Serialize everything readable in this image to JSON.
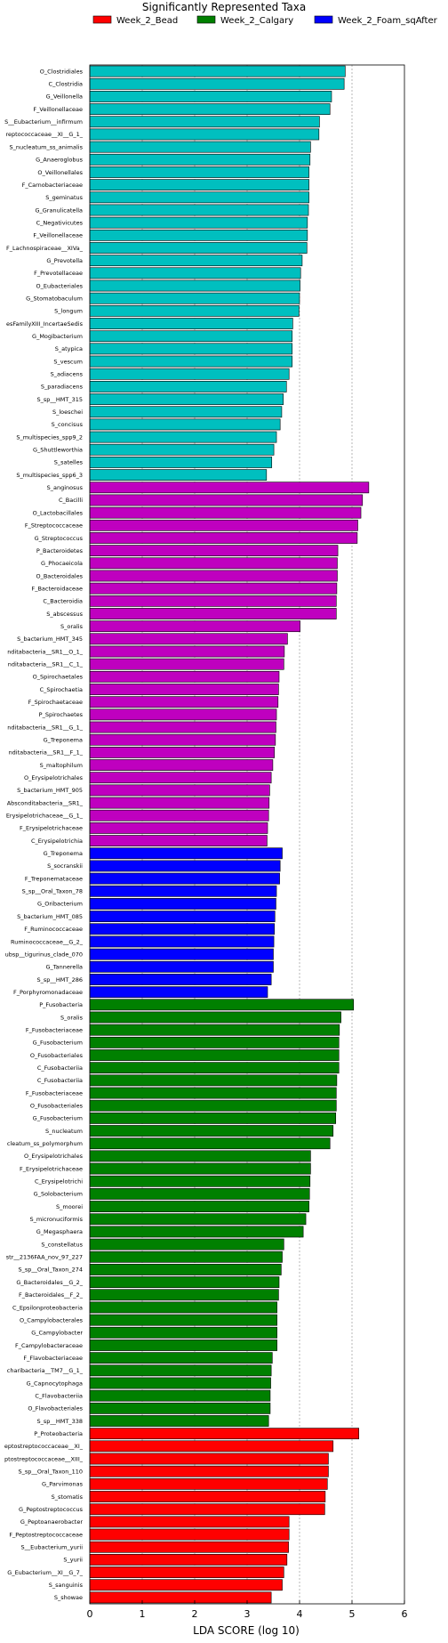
{
  "chart_data": {
    "type": "bar",
    "orientation": "horizontal",
    "title": "Significantly Represented Taxa",
    "xlabel": "LDA SCORE (log 10)",
    "xlim": [
      0,
      6
    ],
    "xticks": [
      0,
      1,
      2,
      3,
      4,
      5,
      6
    ],
    "grid": "vertical-dashed",
    "legend_position": "top",
    "legend": [
      {
        "name": "Week_2_Bead",
        "color": "#ff0000"
      },
      {
        "name": "Week_2_Calgary",
        "color": "#008000"
      },
      {
        "name": "Week_2_Foam_sqAfter",
        "color": "#0000ff"
      }
    ],
    "series_colors": {
      "Week_2_Bead": "#ff0000",
      "Week_2_Calgary": "#008000",
      "Week_2_Foam_sqAfter": "#0000ff",
      "cyan_group": "#00bfbf",
      "magenta_group": "#bf00bf"
    },
    "bars": [
      {
        "label": "O_Clostridiales",
        "value": 4.87,
        "group": "cyan_group"
      },
      {
        "label": "C_Clostridia",
        "value": 4.85,
        "group": "cyan_group"
      },
      {
        "label": "G_Veillonella",
        "value": 4.61,
        "group": "cyan_group"
      },
      {
        "label": "F_Veillonellaceae",
        "value": 4.58,
        "group": "cyan_group"
      },
      {
        "label": "S__Eubacterium__infirmum",
        "value": 4.38,
        "group": "cyan_group"
      },
      {
        "label": "reptococcaceae__XI__G_1_",
        "value": 4.37,
        "group": "cyan_group"
      },
      {
        "label": "S_nucleatum_ss_animalis",
        "value": 4.21,
        "group": "cyan_group"
      },
      {
        "label": "G_Anaeroglobus",
        "value": 4.2,
        "group": "cyan_group"
      },
      {
        "label": "O_Veillonellales",
        "value": 4.18,
        "group": "cyan_group"
      },
      {
        "label": "F_Carnobacteriaceae",
        "value": 4.18,
        "group": "cyan_group"
      },
      {
        "label": "S_geminatus",
        "value": 4.18,
        "group": "cyan_group"
      },
      {
        "label": "G_Granulicatella",
        "value": 4.17,
        "group": "cyan_group"
      },
      {
        "label": "C_Negativicutes",
        "value": 4.15,
        "group": "cyan_group"
      },
      {
        "label": "F_Veillonellaceae",
        "value": 4.15,
        "group": "cyan_group"
      },
      {
        "label": "F_Lachnospiraceae__XIVa_",
        "value": 4.14,
        "group": "cyan_group"
      },
      {
        "label": "G_Prevotella",
        "value": 4.05,
        "group": "cyan_group"
      },
      {
        "label": "F_Prevotellaceae",
        "value": 4.02,
        "group": "cyan_group"
      },
      {
        "label": "O_Eubacteriales",
        "value": 4.01,
        "group": "cyan_group"
      },
      {
        "label": "G_Stomatobaculum",
        "value": 4.0,
        "group": "cyan_group"
      },
      {
        "label": "S_longum",
        "value": 3.99,
        "group": "cyan_group"
      },
      {
        "label": "esFamilyXIII_IncertaeSedis",
        "value": 3.87,
        "group": "cyan_group"
      },
      {
        "label": "G_Mogibacterium",
        "value": 3.86,
        "group": "cyan_group"
      },
      {
        "label": "S_atypica",
        "value": 3.86,
        "group": "cyan_group"
      },
      {
        "label": "S_vescum",
        "value": 3.86,
        "group": "cyan_group"
      },
      {
        "label": "S_adiacens",
        "value": 3.8,
        "group": "cyan_group"
      },
      {
        "label": "S_paradiacens",
        "value": 3.75,
        "group": "cyan_group"
      },
      {
        "label": "S_sp__HMT_315",
        "value": 3.69,
        "group": "cyan_group"
      },
      {
        "label": "S_loeschei",
        "value": 3.66,
        "group": "cyan_group"
      },
      {
        "label": "S_concisus",
        "value": 3.63,
        "group": "cyan_group"
      },
      {
        "label": "S_multispecies_spp9_2",
        "value": 3.56,
        "group": "cyan_group"
      },
      {
        "label": "G_Shuttleworthia",
        "value": 3.51,
        "group": "cyan_group"
      },
      {
        "label": "S_satelles",
        "value": 3.47,
        "group": "cyan_group"
      },
      {
        "label": "S_multispecies_spp6_3",
        "value": 3.37,
        "group": "cyan_group"
      },
      {
        "label": "S_anginosus",
        "value": 5.32,
        "group": "magenta_group"
      },
      {
        "label": "C_Bacilli",
        "value": 5.2,
        "group": "magenta_group"
      },
      {
        "label": "O_Lactobacillales",
        "value": 5.17,
        "group": "magenta_group"
      },
      {
        "label": "F_Streptococcaceae",
        "value": 5.11,
        "group": "magenta_group"
      },
      {
        "label": "G_Streptococcus",
        "value": 5.1,
        "group": "magenta_group"
      },
      {
        "label": "P_Bacteroidetes",
        "value": 4.73,
        "group": "magenta_group"
      },
      {
        "label": "G_Phocaeicola",
        "value": 4.72,
        "group": "magenta_group"
      },
      {
        "label": "O_Bacteroidales",
        "value": 4.72,
        "group": "magenta_group"
      },
      {
        "label": "F_Bacteroidaceae",
        "value": 4.71,
        "group": "magenta_group"
      },
      {
        "label": "C_Bacteroidia",
        "value": 4.7,
        "group": "magenta_group"
      },
      {
        "label": "S_abscessus",
        "value": 4.7,
        "group": "magenta_group"
      },
      {
        "label": "S_oralis",
        "value": 4.01,
        "group": "magenta_group"
      },
      {
        "label": "S_bacterium_HMT_345",
        "value": 3.77,
        "group": "magenta_group"
      },
      {
        "label": "nditabacteria__SR1__O_1_",
        "value": 3.71,
        "group": "magenta_group"
      },
      {
        "label": "nditabacteria__SR1__C_1_",
        "value": 3.7,
        "group": "magenta_group"
      },
      {
        "label": "O_Spirochaetales",
        "value": 3.61,
        "group": "magenta_group"
      },
      {
        "label": "C_Spirochaetia",
        "value": 3.6,
        "group": "magenta_group"
      },
      {
        "label": "F_Spirochaetaceae",
        "value": 3.59,
        "group": "magenta_group"
      },
      {
        "label": "P_Spirochaetes",
        "value": 3.56,
        "group": "magenta_group"
      },
      {
        "label": "nditabacteria__SR1__G_1_",
        "value": 3.55,
        "group": "magenta_group"
      },
      {
        "label": "G_Treponema",
        "value": 3.54,
        "group": "magenta_group"
      },
      {
        "label": "nditabacteria__SR1__F_1_",
        "value": 3.52,
        "group": "magenta_group"
      },
      {
        "label": "S_maltophilum",
        "value": 3.49,
        "group": "magenta_group"
      },
      {
        "label": "O_Erysipelotrichales",
        "value": 3.46,
        "group": "magenta_group"
      },
      {
        "label": "S_bacterium_HMT_905",
        "value": 3.43,
        "group": "magenta_group"
      },
      {
        "label": "Absconditabacteria__SR1_",
        "value": 3.42,
        "group": "magenta_group"
      },
      {
        "label": "Erysipelotrichaceae__G_1_",
        "value": 3.41,
        "group": "magenta_group"
      },
      {
        "label": "F_Erysipelotrichaceae",
        "value": 3.39,
        "group": "magenta_group"
      },
      {
        "label": "C_Erysipelotrichia",
        "value": 3.38,
        "group": "magenta_group"
      },
      {
        "label": "G_Treponema",
        "value": 3.67,
        "group": "Week_2_Foam_sqAfter"
      },
      {
        "label": "S_socranskii",
        "value": 3.63,
        "group": "Week_2_Foam_sqAfter"
      },
      {
        "label": "F_Treponemataceae",
        "value": 3.62,
        "group": "Week_2_Foam_sqAfter"
      },
      {
        "label": "S_sp__Oral_Taxon_78",
        "value": 3.56,
        "group": "Week_2_Foam_sqAfter"
      },
      {
        "label": "G_Oribacterium",
        "value": 3.55,
        "group": "Week_2_Foam_sqAfter"
      },
      {
        "label": "S_bacterium_HMT_085",
        "value": 3.53,
        "group": "Week_2_Foam_sqAfter"
      },
      {
        "label": "F_Ruminococcaceae",
        "value": 3.52,
        "group": "Week_2_Foam_sqAfter"
      },
      {
        "label": "Ruminococcaceae__G_2_",
        "value": 3.51,
        "group": "Week_2_Foam_sqAfter"
      },
      {
        "label": "ubsp__tigurinus_clade_070",
        "value": 3.5,
        "group": "Week_2_Foam_sqAfter"
      },
      {
        "label": "G_Tannerella",
        "value": 3.5,
        "group": "Week_2_Foam_sqAfter"
      },
      {
        "label": "S_sp__HMT_286",
        "value": 3.46,
        "group": "Week_2_Foam_sqAfter"
      },
      {
        "label": "F_Porphyromonadaceae",
        "value": 3.39,
        "group": "Week_2_Foam_sqAfter"
      },
      {
        "label": "P_Fusobacteria",
        "value": 5.03,
        "group": "Week_2_Calgary"
      },
      {
        "label": "S_oralis",
        "value": 4.79,
        "group": "Week_2_Calgary"
      },
      {
        "label": "F_Fusobacteriaceae",
        "value": 4.76,
        "group": "Week_2_Calgary"
      },
      {
        "label": "G_Fusobacterium",
        "value": 4.75,
        "group": "Week_2_Calgary"
      },
      {
        "label": "O_Fusobacteriales",
        "value": 4.75,
        "group": "Week_2_Calgary"
      },
      {
        "label": "C_Fusobacteriia",
        "value": 4.75,
        "group": "Week_2_Calgary"
      },
      {
        "label": "C_Fusobacteriia",
        "value": 4.71,
        "group": "Week_2_Calgary"
      },
      {
        "label": "F_Fusobacteriaceae",
        "value": 4.7,
        "group": "Week_2_Calgary"
      },
      {
        "label": "O_Fusobacteriales",
        "value": 4.7,
        "group": "Week_2_Calgary"
      },
      {
        "label": "G_Fusobacterium",
        "value": 4.69,
        "group": "Week_2_Calgary"
      },
      {
        "label": "S_nucleatum",
        "value": 4.64,
        "group": "Week_2_Calgary"
      },
      {
        "label": "cleatum_ss_polymorphum",
        "value": 4.58,
        "group": "Week_2_Calgary"
      },
      {
        "label": "O_Erysipelotrichales",
        "value": 4.21,
        "group": "Week_2_Calgary"
      },
      {
        "label": "F_Erysipelotrichaceae",
        "value": 4.21,
        "group": "Week_2_Calgary"
      },
      {
        "label": "C_Erysipelotrichi",
        "value": 4.2,
        "group": "Week_2_Calgary"
      },
      {
        "label": "G_Solobacterium",
        "value": 4.19,
        "group": "Week_2_Calgary"
      },
      {
        "label": "S_moorei",
        "value": 4.18,
        "group": "Week_2_Calgary"
      },
      {
        "label": "S_micronuciformis",
        "value": 4.12,
        "group": "Week_2_Calgary"
      },
      {
        "label": "G_Megasphaera",
        "value": 4.07,
        "group": "Week_2_Calgary"
      },
      {
        "label": "S_constellatus",
        "value": 3.7,
        "group": "Week_2_Calgary"
      },
      {
        "label": "str__2136FAA_nov_97_227",
        "value": 3.67,
        "group": "Week_2_Calgary"
      },
      {
        "label": "S_sp__Oral_Taxon_274",
        "value": 3.65,
        "group": "Week_2_Calgary"
      },
      {
        "label": "G_Bacteroidales__G_2_",
        "value": 3.61,
        "group": "Week_2_Calgary"
      },
      {
        "label": "F_Bacteroidales__F_2_",
        "value": 3.6,
        "group": "Week_2_Calgary"
      },
      {
        "label": "C_Epsilonproteobacteria",
        "value": 3.57,
        "group": "Week_2_Calgary"
      },
      {
        "label": "O_Campylobacterales",
        "value": 3.57,
        "group": "Week_2_Calgary"
      },
      {
        "label": "G_Campylobacter",
        "value": 3.57,
        "group": "Week_2_Calgary"
      },
      {
        "label": "F_Campylobacteraceae",
        "value": 3.57,
        "group": "Week_2_Calgary"
      },
      {
        "label": "F_Flavobacteriaceae",
        "value": 3.48,
        "group": "Week_2_Calgary"
      },
      {
        "label": "charibacteria__TM7__G_1_",
        "value": 3.46,
        "group": "Week_2_Calgary"
      },
      {
        "label": "G_Capnocytophaga",
        "value": 3.45,
        "group": "Week_2_Calgary"
      },
      {
        "label": "C_Flavobacteriia",
        "value": 3.44,
        "group": "Week_2_Calgary"
      },
      {
        "label": "O_Flavobacteriales",
        "value": 3.44,
        "group": "Week_2_Calgary"
      },
      {
        "label": "S_sp__HMT_338",
        "value": 3.41,
        "group": "Week_2_Calgary"
      },
      {
        "label": "P_Proteobacteria",
        "value": 5.13,
        "group": "Week_2_Bead"
      },
      {
        "label": "eptostreptococcaceae__XI_",
        "value": 4.64,
        "group": "Week_2_Bead"
      },
      {
        "label": "ptostreptococcaceae__XIII_",
        "value": 4.55,
        "group": "Week_2_Bead"
      },
      {
        "label": "S_sp__Oral_Taxon_110",
        "value": 4.55,
        "group": "Week_2_Bead"
      },
      {
        "label": "G_Parvimonas",
        "value": 4.53,
        "group": "Week_2_Bead"
      },
      {
        "label": "S_stomatis",
        "value": 4.49,
        "group": "Week_2_Bead"
      },
      {
        "label": "G_Peptostreptococcus",
        "value": 4.48,
        "group": "Week_2_Bead"
      },
      {
        "label": "G_Peptoanaerobacter",
        "value": 3.8,
        "group": "Week_2_Bead"
      },
      {
        "label": "F_Peptostreptococcaceae",
        "value": 3.8,
        "group": "Week_2_Bead"
      },
      {
        "label": "S__Eubacterium_yurii",
        "value": 3.79,
        "group": "Week_2_Bead"
      },
      {
        "label": "S_yurii",
        "value": 3.76,
        "group": "Week_2_Bead"
      },
      {
        "label": "G_Eubacterium__XI__G_7_",
        "value": 3.7,
        "group": "Week_2_Bead"
      },
      {
        "label": "S_sanguinis",
        "value": 3.67,
        "group": "Week_2_Bead"
      },
      {
        "label": "S_showae",
        "value": 3.46,
        "group": "Week_2_Bead"
      }
    ]
  }
}
